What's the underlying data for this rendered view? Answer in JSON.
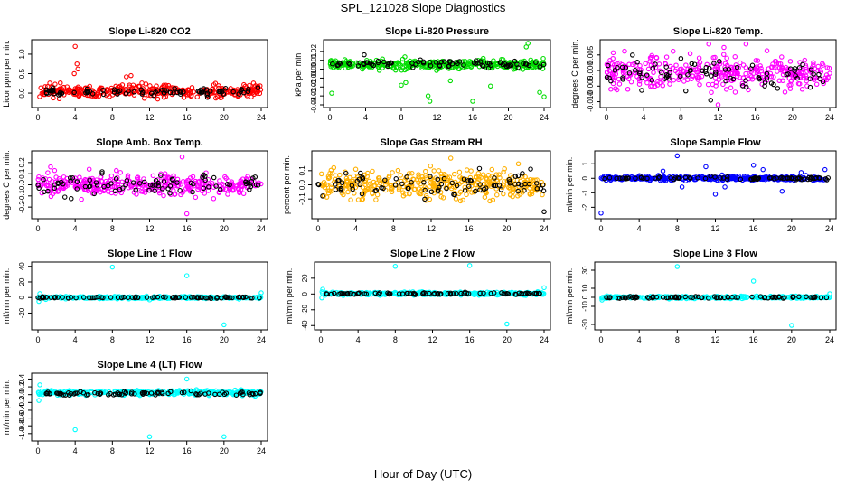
{
  "page": {
    "title": "SPL_121028  Slope Diagnostics",
    "xlabel": "Hour of Day (UTC)"
  },
  "chart_data": [
    {
      "type": "scatter",
      "title": "Slope Li-820 CO2",
      "ylabel": "Licor ppm per min.",
      "xlim": [
        0,
        24
      ],
      "ylim": [
        -0.3,
        1.3
      ],
      "xticks": [
        0,
        4,
        8,
        12,
        16,
        20,
        24
      ],
      "yticks": [
        0,
        0.5,
        1
      ],
      "ytick_labels": [
        "0.0",
        "0.5",
        "1.0"
      ],
      "color": "#ff0000",
      "sample_color": "#000000",
      "series": [
        {
          "name": "",
          "color": "#ff0000",
          "center": 0.05,
          "spread": 0.13,
          "count": 340,
          "outliers": [
            [
              4,
              1.2
            ],
            [
              4.2,
              0.75
            ],
            [
              4.3,
              0.62
            ],
            [
              3.9,
              0.5
            ],
            [
              9.5,
              0.42
            ],
            [
              10,
              0.45
            ]
          ]
        },
        {
          "name": "",
          "color": "#000000",
          "center": 0.03,
          "spread": 0.08,
          "count": 85,
          "outliers": []
        }
      ]
    },
    {
      "type": "scatter",
      "title": "Slope Li-820 Pressure",
      "ylabel": "kPa per min.",
      "xlim": [
        0,
        24
      ],
      "ylim": [
        -0.04,
        0.03
      ],
      "xticks": [
        0,
        4,
        8,
        12,
        16,
        20,
        24
      ],
      "yticks": [
        -0.04,
        -0.03,
        -0.02,
        -0.01,
        0,
        0.01,
        0.02
      ],
      "ytick_labels": [
        "-0.04",
        "-0.03",
        "-0.02",
        "-0.01",
        "0.00",
        "0.01",
        "0.02"
      ],
      "color": "#00dd00",
      "sample_color": "#000000",
      "series": [
        {
          "name": "",
          "color": "#00dd00",
          "center": 0.005,
          "spread": 0.004,
          "count": 360,
          "outliers": [
            [
              0.2,
              -0.027
            ],
            [
              3,
              -0.045
            ],
            [
              8,
              -0.018
            ],
            [
              8.5,
              -0.015
            ],
            [
              11,
              -0.03
            ],
            [
              11.2,
              -0.036
            ],
            [
              13.5,
              -0.013
            ],
            [
              16,
              -0.036
            ],
            [
              18,
              -0.019
            ],
            [
              22,
              0.025
            ],
            [
              22.2,
              0.029
            ],
            [
              23.5,
              -0.026
            ],
            [
              24,
              -0.031
            ]
          ]
        },
        {
          "name": "",
          "color": "#000000",
          "center": 0.006,
          "spread": 0.004,
          "count": 80,
          "outliers": []
        }
      ]
    },
    {
      "type": "scatter",
      "title": "Slope Li-820 Temp.",
      "ylabel": "degrees C per min.",
      "xlim": [
        0,
        24
      ],
      "ylim": [
        -0.011,
        0.009
      ],
      "xticks": [
        0,
        4,
        8,
        12,
        16,
        20,
        24
      ],
      "yticks": [
        -0.01,
        -0.005,
        0,
        0.005
      ],
      "ytick_labels": [
        "-0.010",
        "-0.005",
        "0.000",
        "0.005"
      ],
      "color": "#ff00ff",
      "sample_color": "#000000",
      "series": [
        {
          "name": "",
          "color": "#ff00ff",
          "center": -0.0005,
          "spread": 0.0042,
          "count": 360,
          "outliers": [
            [
              11,
              0.0085
            ],
            [
              12,
              -0.011
            ],
            [
              15,
              0.0085
            ]
          ]
        },
        {
          "name": "",
          "color": "#000000",
          "center": -0.001,
          "spread": 0.004,
          "count": 85,
          "outliers": [
            [
              11.2,
              -0.0095
            ]
          ]
        }
      ]
    },
    {
      "type": "scatter",
      "title": "Slope Amb. Box Temp.",
      "ylabel": "degrees C per min.",
      "xlim": [
        0,
        24
      ],
      "ylim": [
        -0.28,
        0.28
      ],
      "xticks": [
        0,
        4,
        8,
        12,
        16,
        20,
        24
      ],
      "yticks": [
        -0.2,
        -0.1,
        0,
        0.1,
        0.2
      ],
      "ytick_labels": [
        "-0.2",
        "-0.1",
        "0.0",
        "0.1",
        "0.2"
      ],
      "color": "#ff00ff",
      "sample_color": "#000000",
      "series": [
        {
          "name": "",
          "color": "#ff00ff",
          "center": 0.0,
          "spread": 0.08,
          "count": 360,
          "outliers": [
            [
              16,
              -0.26
            ],
            [
              15.5,
              0.25
            ]
          ]
        },
        {
          "name": "",
          "color": "#000000",
          "center": 0.0,
          "spread": 0.07,
          "count": 85,
          "outliers": []
        }
      ]
    },
    {
      "type": "scatter",
      "title": "Slope Gas Stream RH",
      "ylabel": "percent per min.",
      "xlim": [
        0,
        24
      ],
      "ylim": [
        -0.22,
        0.22
      ],
      "xticks": [
        0,
        4,
        8,
        12,
        16,
        20,
        24
      ],
      "yticks": [
        -0.1,
        0,
        0.1
      ],
      "ytick_labels": [
        "-0.1",
        "0.0",
        "0.1"
      ],
      "color": "#ffb000",
      "sample_color": "#000000",
      "series": [
        {
          "name": "",
          "color": "#ffb000",
          "center": 0.0,
          "spread": 0.08,
          "count": 380,
          "outliers": []
        },
        {
          "name": "",
          "color": "#000000",
          "center": 0.0,
          "spread": 0.07,
          "count": 85,
          "outliers": [
            [
              24,
              -0.19
            ]
          ]
        }
      ]
    },
    {
      "type": "scatter",
      "title": "Slope Sample Flow",
      "ylabel": "ml/min per min.",
      "xlim": [
        0,
        24
      ],
      "ylim": [
        -2.6,
        1.7
      ],
      "xticks": [
        0,
        4,
        8,
        12,
        16,
        20,
        24
      ],
      "yticks": [
        -2,
        -1,
        0,
        1
      ],
      "ytick_labels": [
        "-2",
        "-1",
        "0",
        "1"
      ],
      "color": "#0000ff",
      "sample_color": "#000000",
      "series": [
        {
          "name": "",
          "color": "#0000ff",
          "center": 0.0,
          "spread": 0.12,
          "count": 340,
          "outliers": [
            [
              0,
              -2.4
            ],
            [
              8,
              1.55
            ],
            [
              12,
              -1.1
            ],
            [
              16,
              0.9
            ],
            [
              17,
              0.6
            ],
            [
              6.5,
              0.5
            ],
            [
              11,
              0.8
            ],
            [
              13,
              -0.6
            ],
            [
              19,
              -0.9
            ],
            [
              21,
              0.4
            ],
            [
              23.5,
              0.6
            ],
            [
              8.5,
              -0.6
            ]
          ]
        },
        {
          "name": "",
          "color": "#000000",
          "center": 0.0,
          "spread": 0.08,
          "count": 85,
          "outliers": []
        }
      ]
    },
    {
      "type": "scatter",
      "title": "Slope Line 1 Flow",
      "ylabel": "ml/min per min.",
      "xlim": [
        0,
        24
      ],
      "ylim": [
        -38,
        42
      ],
      "xticks": [
        0,
        4,
        8,
        12,
        16,
        20,
        24
      ],
      "yticks": [
        -20,
        0,
        20,
        40
      ],
      "ytick_labels": [
        "-20",
        "0",
        "20",
        "40"
      ],
      "color": "#00ffff",
      "sample_color": "#000000",
      "series": [
        {
          "name": "",
          "color": "#00ffff",
          "center": 0.0,
          "spread": 1.2,
          "count": 330,
          "outliers": [
            [
              8,
              39
            ],
            [
              16,
              28
            ],
            [
              20,
              -35
            ],
            [
              0.1,
              -5
            ],
            [
              0.2,
              5
            ],
            [
              24,
              6
            ],
            [
              12,
              -3
            ]
          ]
        },
        {
          "name": "",
          "color": "#000000",
          "center": 0.0,
          "spread": 0.8,
          "count": 85,
          "outliers": []
        }
      ]
    },
    {
      "type": "scatter",
      "title": "Slope Line 2 Flow",
      "ylabel": "ml/min per min.",
      "xlim": [
        0,
        24
      ],
      "ylim": [
        -42,
        37
      ],
      "xticks": [
        0,
        4,
        8,
        12,
        16,
        20,
        24
      ],
      "yticks": [
        -40,
        -20,
        0,
        20
      ],
      "ytick_labels": [
        "-40",
        "-20",
        "0",
        "20"
      ],
      "color": "#00ffff",
      "sample_color": "#000000",
      "series": [
        {
          "name": "",
          "color": "#00ffff",
          "center": 0.5,
          "spread": 1.5,
          "count": 330,
          "outliers": [
            [
              8,
              35
            ],
            [
              16,
              36
            ],
            [
              20,
              -38
            ],
            [
              0.1,
              -5
            ],
            [
              0.2,
              6
            ],
            [
              24,
              8
            ]
          ]
        },
        {
          "name": "",
          "color": "#000000",
          "center": 0.5,
          "spread": 1.0,
          "count": 85,
          "outliers": []
        }
      ]
    },
    {
      "type": "scatter",
      "title": "Slope Line 3 Flow",
      "ylabel": "ml/min per min.",
      "xlim": [
        0,
        24
      ],
      "ylim": [
        -33,
        36
      ],
      "xticks": [
        0,
        4,
        8,
        12,
        16,
        20,
        24
      ],
      "yticks": [
        -30,
        -10,
        0,
        10,
        30
      ],
      "ytick_labels": [
        "-30",
        "-10",
        "0",
        "10",
        "30"
      ],
      "color": "#00ffff",
      "sample_color": "#000000",
      "series": [
        {
          "name": "",
          "color": "#00ffff",
          "center": 0.0,
          "spread": 1.0,
          "count": 330,
          "outliers": [
            [
              8,
              34
            ],
            [
              16,
              18
            ],
            [
              20,
              -31
            ],
            [
              0.1,
              -3
            ],
            [
              24,
              4
            ]
          ]
        },
        {
          "name": "",
          "color": "#000000",
          "center": 0.0,
          "spread": 0.7,
          "count": 85,
          "outliers": []
        }
      ]
    },
    {
      "type": "scatter",
      "title": "Slope Line 4 (LT) Flow",
      "ylabel": "ml/min per min.",
      "xlim": [
        0,
        24
      ],
      "ylim": [
        -1.12,
        0.48
      ],
      "xticks": [
        0,
        4,
        8,
        12,
        16,
        20,
        24
      ],
      "yticks": [
        -1,
        -0.8,
        -0.6,
        -0.4,
        -0.2,
        0,
        0.2,
        0.4
      ],
      "ytick_labels": [
        "-1.0",
        "-0.8",
        "-0.6",
        "-0.4",
        "-0.2",
        "0.0",
        "0.2",
        "0.4"
      ],
      "color": "#00ffff",
      "sample_color": "#000000",
      "series": [
        {
          "name": "",
          "color": "#00ffff",
          "center": 0.05,
          "spread": 0.05,
          "count": 350,
          "outliers": [
            [
              4,
              -0.9
            ],
            [
              12,
              -1.08
            ],
            [
              20,
              -1.08
            ],
            [
              16,
              0.4
            ],
            [
              0.1,
              -0.15
            ],
            [
              0.2,
              0.25
            ]
          ]
        },
        {
          "name": "",
          "color": "#000000",
          "center": 0.03,
          "spread": 0.05,
          "count": 85,
          "outliers": []
        }
      ]
    }
  ]
}
